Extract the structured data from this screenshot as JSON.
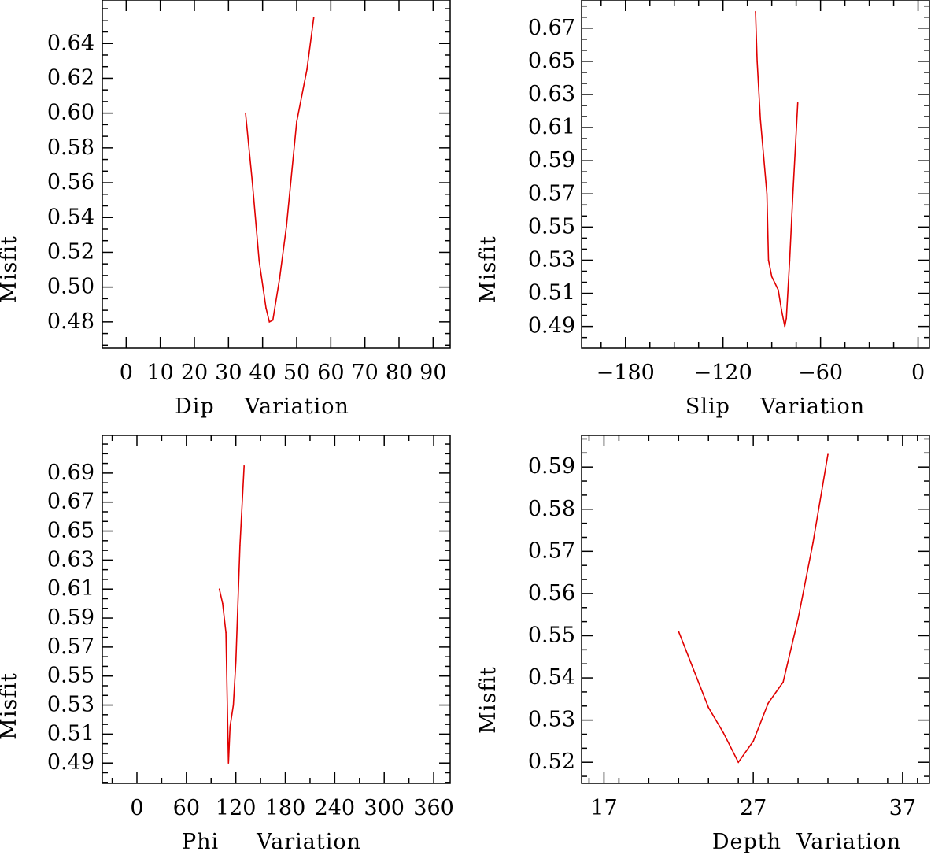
{
  "chart_data": [
    {
      "type": "line",
      "xlabel": "Dip    Variation",
      "ylabel": "Misfit",
      "xlim": [
        -7,
        95
      ],
      "ylim": [
        0.465,
        0.665
      ],
      "xticks": [
        0,
        10,
        20,
        30,
        40,
        50,
        60,
        70,
        80,
        90
      ],
      "xtick_labels": [
        "0",
        "10",
        "20",
        "30",
        "40",
        "50",
        "60",
        "70",
        "80",
        "90"
      ],
      "yticks": [
        0.48,
        0.5,
        0.52,
        0.54,
        0.56,
        0.58,
        0.6,
        0.62,
        0.64
      ],
      "ytick_labels": [
        "0.48",
        "0.50",
        "0.52",
        "0.54",
        "0.56",
        "0.58",
        "0.60",
        "0.62",
        "0.64"
      ],
      "grid": false,
      "series": [
        {
          "color": "#e00000",
          "x": [
            35,
            37,
            39,
            41,
            42,
            43,
            45,
            47,
            50,
            53,
            55
          ],
          "y": [
            0.6,
            0.56,
            0.515,
            0.488,
            0.48,
            0.481,
            0.505,
            0.535,
            0.595,
            0.625,
            0.655
          ]
        }
      ]
    },
    {
      "type": "line",
      "xlabel": "Slip    Variation",
      "ylabel": "Misfit",
      "xlim": [
        -207,
        7
      ],
      "ylim": [
        0.477,
        0.687
      ],
      "xticks": [
        -180,
        -120,
        -60,
        0
      ],
      "xtick_labels": [
        "−180",
        "−120",
        "−60",
        "0"
      ],
      "yticks": [
        0.49,
        0.51,
        0.53,
        0.55,
        0.57,
        0.59,
        0.61,
        0.63,
        0.65,
        0.67
      ],
      "ytick_labels": [
        "0.49",
        "0.51",
        "0.53",
        "0.55",
        "0.57",
        "0.59",
        "0.61",
        "0.63",
        "0.65",
        "0.67"
      ],
      "grid": false,
      "series": [
        {
          "color": "#e00000",
          "x": [
            -100,
            -99,
            -97,
            -93,
            -92,
            -90,
            -86,
            -84,
            -82,
            -81,
            -79,
            -77,
            -74
          ],
          "y": [
            0.68,
            0.65,
            0.615,
            0.57,
            0.53,
            0.52,
            0.512,
            0.5,
            0.49,
            0.495,
            0.53,
            0.57,
            0.625
          ]
        }
      ]
    },
    {
      "type": "line",
      "xlabel": "Phi     Variation",
      "ylabel": "Misfit",
      "xlim": [
        -42,
        380
      ],
      "ylim": [
        0.476,
        0.716
      ],
      "xticks": [
        0,
        60,
        120,
        180,
        240,
        300,
        360
      ],
      "xtick_labels": [
        "0",
        "60",
        "120",
        "180",
        "240",
        "300",
        "360"
      ],
      "yticks": [
        0.49,
        0.51,
        0.53,
        0.55,
        0.57,
        0.59,
        0.61,
        0.63,
        0.65,
        0.67,
        0.69
      ],
      "ytick_labels": [
        "0.49",
        "0.51",
        "0.53",
        "0.55",
        "0.57",
        "0.59",
        "0.61",
        "0.63",
        "0.65",
        "0.67",
        "0.69"
      ],
      "grid": false,
      "series": [
        {
          "color": "#e00000",
          "x": [
            100,
            104,
            108,
            110,
            111,
            113,
            117,
            120,
            125,
            130
          ],
          "y": [
            0.61,
            0.6,
            0.58,
            0.52,
            0.49,
            0.515,
            0.53,
            0.56,
            0.64,
            0.695
          ]
        }
      ]
    },
    {
      "type": "line",
      "xlabel": "Depth  Variation",
      "ylabel": "Misfit",
      "xlim": [
        15.5,
        38.8
      ],
      "ylim": [
        0.515,
        0.5975
      ],
      "xticks": [
        17,
        27,
        37
      ],
      "xtick_labels": [
        "17",
        "27",
        "37"
      ],
      "yticks": [
        0.52,
        0.53,
        0.54,
        0.55,
        0.56,
        0.57,
        0.58,
        0.59
      ],
      "ytick_labels": [
        "0.52",
        "0.53",
        "0.54",
        "0.55",
        "0.56",
        "0.57",
        "0.58",
        "0.59"
      ],
      "grid": false,
      "series": [
        {
          "color": "#e00000",
          "x": [
            22,
            24,
            25,
            26,
            27,
            28,
            29,
            30,
            31,
            32
          ],
          "y": [
            0.551,
            0.533,
            0.527,
            0.52,
            0.525,
            0.534,
            0.539,
            0.554,
            0.572,
            0.593
          ]
        }
      ]
    }
  ]
}
